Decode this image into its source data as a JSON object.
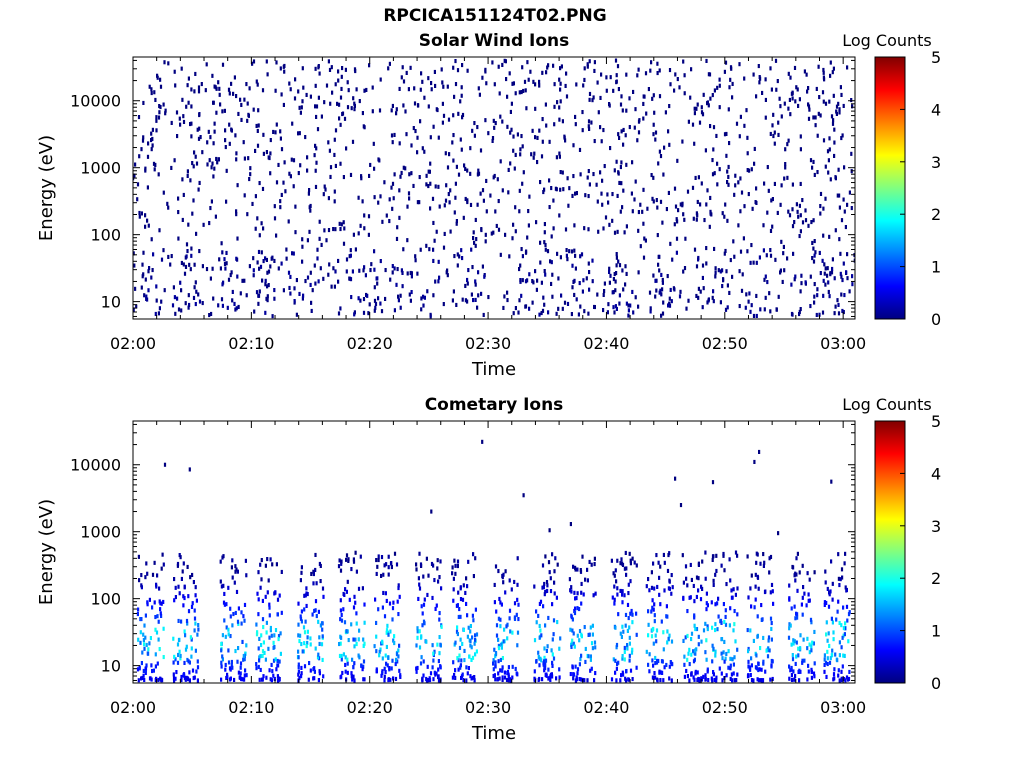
{
  "figure": {
    "title": "RPCICA151124T02.PNG",
    "colors": {
      "background": "#ffffff",
      "axis": "#000000"
    }
  },
  "chart_data": [
    {
      "type": "heatmap",
      "title": "Solar Wind Ions",
      "xlabel": "Time",
      "ylabel": "Energy (eV)",
      "x_ticks": [
        "02:00",
        "02:10",
        "02:20",
        "02:30",
        "02:40",
        "02:50",
        "03:00"
      ],
      "x_range_minutes": [
        0,
        61
      ],
      "y_scale": "log",
      "y_ticks": [
        10,
        100,
        1000,
        10000
      ],
      "y_tick_labels": [
        "10",
        "100",
        "1000",
        "10000"
      ],
      "y_range": [
        5.5,
        45000
      ],
      "colorbar": {
        "label": "Log Counts",
        "range": [
          0,
          5
        ],
        "ticks": [
          "0",
          "1",
          "2",
          "3",
          "4",
          "5"
        ],
        "colormap": "jet"
      },
      "pattern": {
        "scattered_counts": {
          "energy_range_eV": [
            6,
            40000
          ],
          "log_counts": 0
        },
        "low_energy_bursts": {
          "energy_range_eV": [
            6,
            60
          ],
          "log_counts_range": [
            0,
            0.5
          ]
        }
      },
      "burst_times_minutes": [
        1.2,
        4.5,
        8.5,
        11.5,
        14.5,
        18.5,
        21.5,
        24.5,
        28.5,
        34,
        37.5,
        41,
        45,
        49,
        53,
        57,
        59.5
      ]
    },
    {
      "type": "heatmap",
      "title": "Cometary Ions",
      "xlabel": "Time",
      "ylabel": "Energy (eV)",
      "x_ticks": [
        "02:00",
        "02:10",
        "02:20",
        "02:30",
        "02:40",
        "02:50",
        "03:00"
      ],
      "x_range_minutes": [
        0,
        61
      ],
      "y_scale": "log",
      "y_ticks": [
        10,
        100,
        1000,
        10000
      ],
      "y_tick_labels": [
        "10",
        "100",
        "1000",
        "10000"
      ],
      "y_range": [
        5.5,
        45000
      ],
      "colorbar": {
        "label": "Log Counts",
        "range": [
          0,
          5
        ],
        "ticks": [
          "0",
          "1",
          "2",
          "3",
          "4",
          "5"
        ],
        "colormap": "jet"
      },
      "pattern": {
        "bursts_energy_range_eV": [
          6,
          500
        ],
        "peak_energy_range_eV": [
          12,
          45
        ],
        "peak_log_counts": 2.0
      },
      "burst_times_minutes": [
        1.5,
        4.5,
        8.5,
        11.5,
        15,
        18.5,
        21.5,
        25,
        28,
        31.5,
        35,
        38,
        41.5,
        44.5,
        47.5,
        50,
        53,
        56.5,
        59.5
      ],
      "isolated_high_energy_counts": [
        {
          "t": 2.7,
          "e": 10000
        },
        {
          "t": 4.8,
          "e": 8500
        },
        {
          "t": 25.2,
          "e": 2000
        },
        {
          "t": 29.5,
          "e": 22000
        },
        {
          "t": 33,
          "e": 3500
        },
        {
          "t": 35.2,
          "e": 1050
        },
        {
          "t": 37.0,
          "e": 1300
        },
        {
          "t": 45.8,
          "e": 6200
        },
        {
          "t": 46.3,
          "e": 2500
        },
        {
          "t": 49.0,
          "e": 5500
        },
        {
          "t": 52.5,
          "e": 11000
        },
        {
          "t": 52.9,
          "e": 15500
        },
        {
          "t": 54.5,
          "e": 950
        },
        {
          "t": 59.0,
          "e": 5600
        }
      ]
    }
  ]
}
